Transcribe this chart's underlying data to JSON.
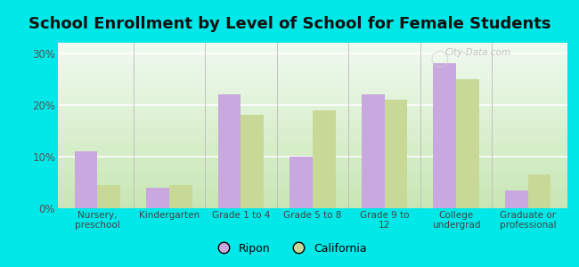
{
  "title": "School Enrollment by Level of School for Female Students",
  "categories": [
    "Nursery,\npreschool",
    "Kindergarten",
    "Grade 1 to 4",
    "Grade 5 to 8",
    "Grade 9 to\n12",
    "College\nundergrad",
    "Graduate or\nprofessional"
  ],
  "ripon": [
    11.0,
    4.0,
    22.0,
    10.0,
    22.0,
    28.0,
    3.5
  ],
  "california": [
    4.5,
    4.5,
    18.0,
    19.0,
    21.0,
    25.0,
    6.5
  ],
  "ripon_color": "#c9a8e0",
  "california_color": "#c8d897",
  "background_top": "#f0faf0",
  "background_bottom": "#d4f0c0",
  "outer_background": "#00e8e8",
  "ylim": [
    0,
    32
  ],
  "yticks": [
    0,
    10,
    20,
    30
  ],
  "ytick_labels": [
    "0%",
    "10%",
    "20%",
    "30%"
  ],
  "legend_labels": [
    "Ripon",
    "California"
  ],
  "title_fontsize": 13,
  "watermark": "City-Data.com"
}
